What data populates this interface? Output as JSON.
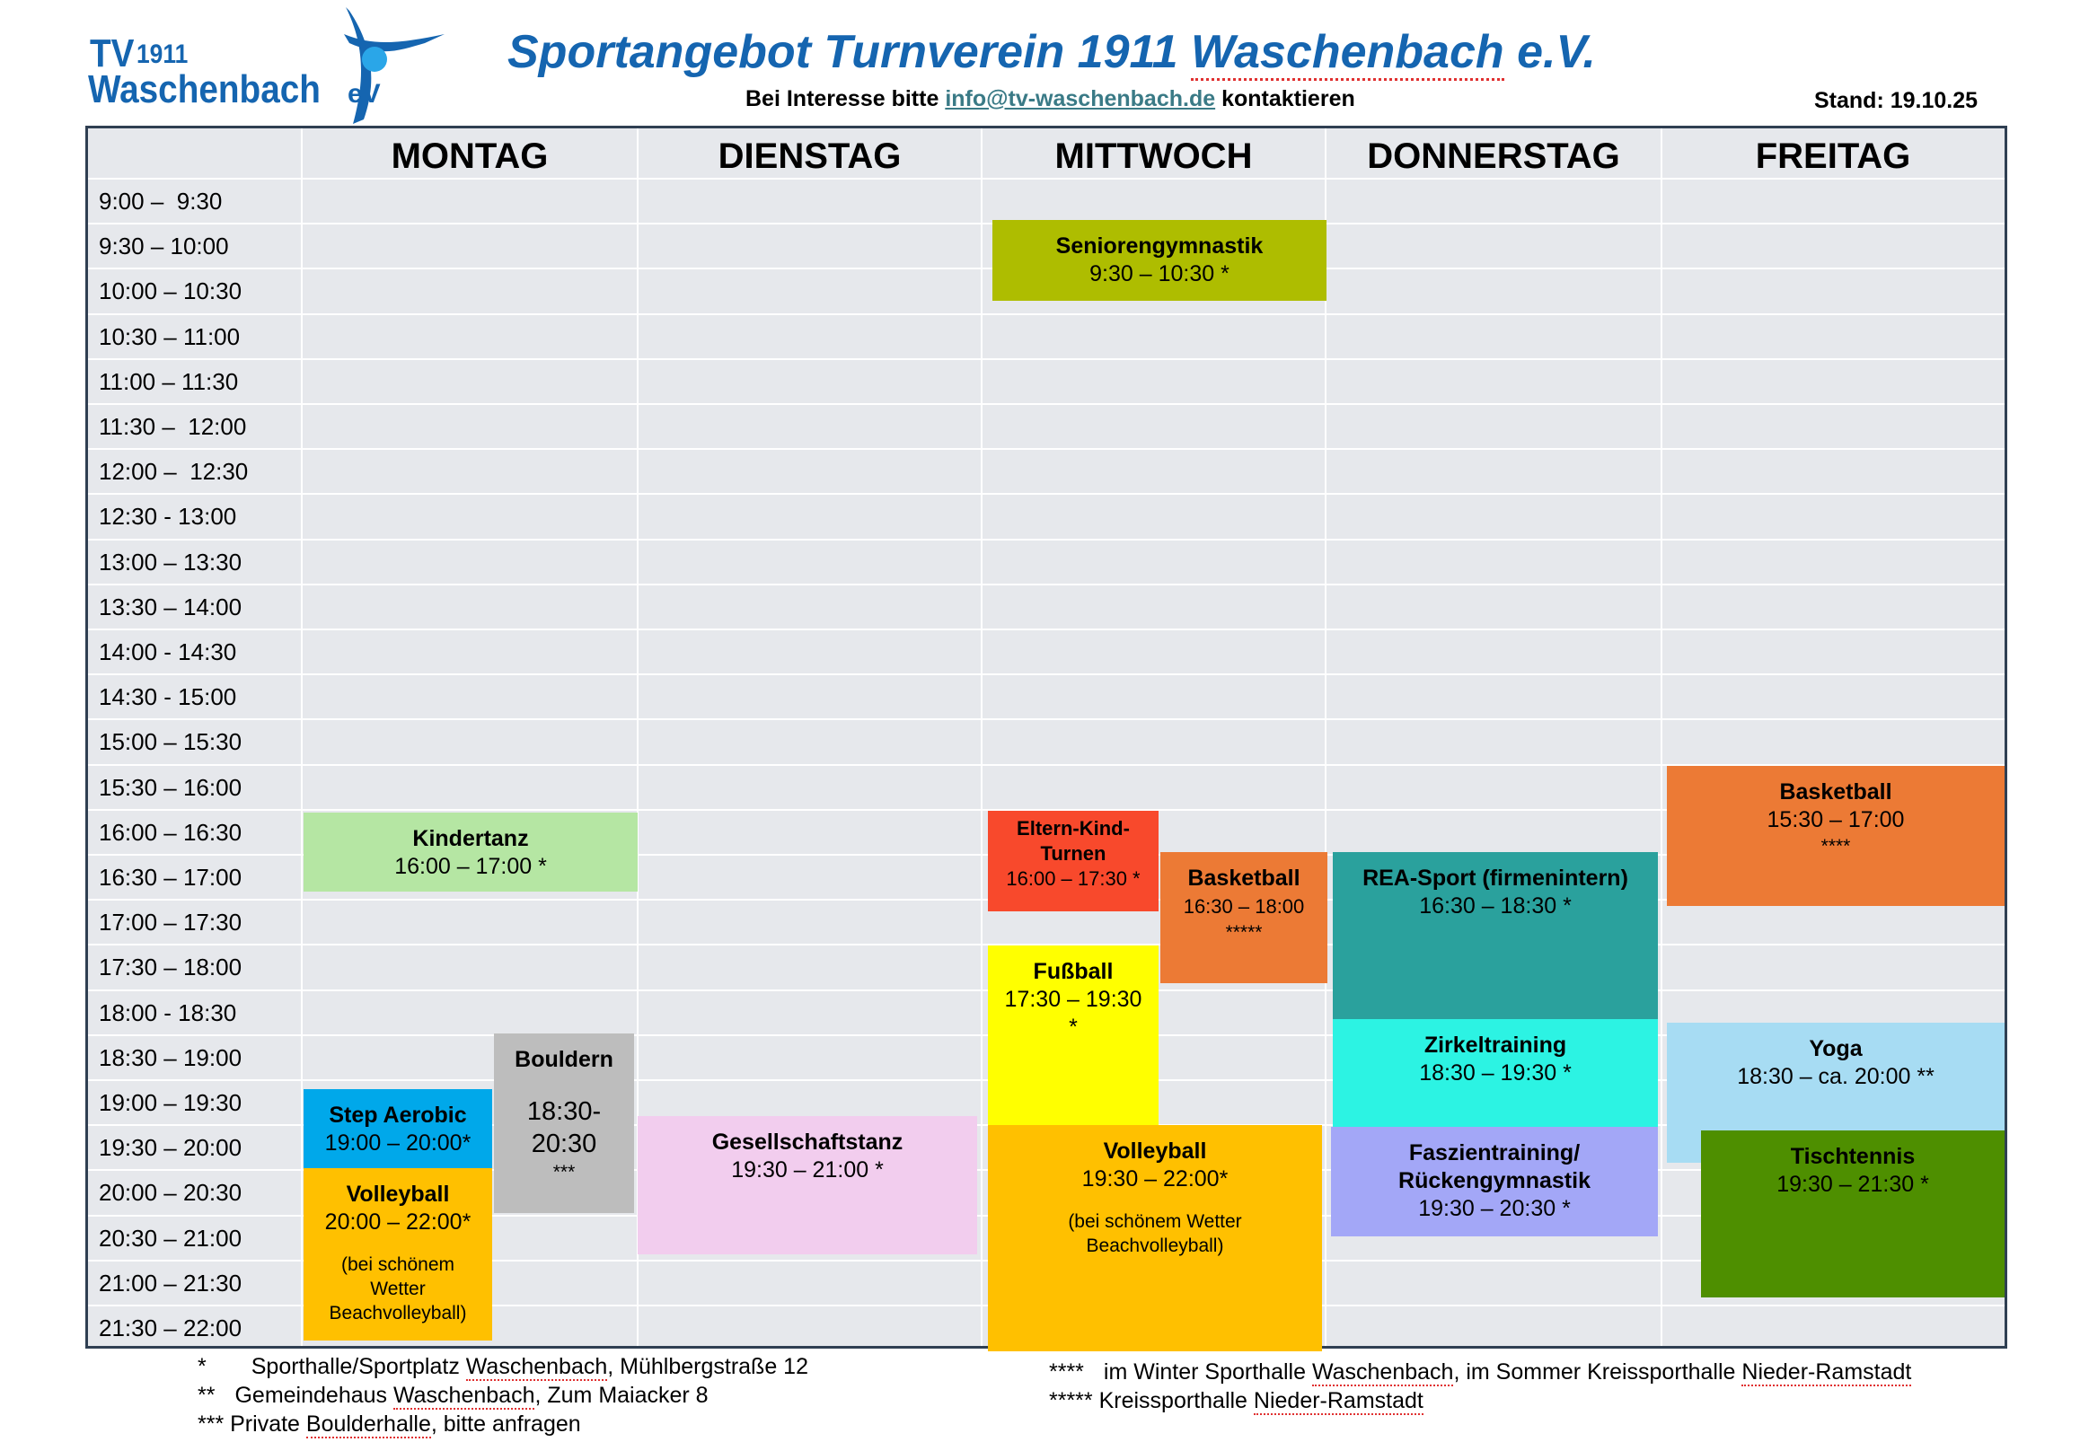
{
  "logo": {
    "tv": "TV",
    "year": "1911",
    "name": "Waschenbach",
    "ev": "eV"
  },
  "title_part1": "Sportangebot Turnverein 1911 ",
  "title_part2": "Waschenbach",
  "title_part3": " e.V.",
  "contact_before": "Bei Interesse bitte ",
  "contact_email": "info@tv-waschenbach.de",
  "contact_after": " kontaktieren",
  "stand": "Stand: 19.10.25",
  "days": [
    "MONTAG",
    "DIENSTAG",
    "MITTWOCH",
    "DONNERSTAG",
    "FREITAG"
  ],
  "times": [
    "9:00 –  9:30",
    "9:30 – 10:00",
    "10:00 – 10:30",
    "10:30 – 11:00",
    "11:00 – 11:30",
    "11:30 –  12:00",
    "12:00 –  12:30",
    "12:30 - 13:00",
    "13:00 – 13:30",
    "13:30 – 14:00",
    "14:00 - 14:30",
    "14:30 - 15:00",
    "15:00 – 15:30",
    "15:30 – 16:00",
    "16:00 – 16:30",
    "16:30 – 17:00",
    "17:00 – 17:30",
    "17:30 – 18:00",
    "18:00 - 18:30",
    "18:30 – 19:00",
    "19:00 – 19:30",
    "19:30 – 20:00",
    "20:00 – 20:30",
    "20:30 – 21:00",
    "21:00 – 21:30",
    "21:30 – 22:00"
  ],
  "events": [
    {
      "name": "Seniorengymnastik",
      "time": "9:30 – 10:30 *",
      "color": "#aebd00"
    },
    {
      "name": "Kindertanz",
      "time": "16:00 – 17:00 *",
      "color": "#b5e6a3"
    },
    {
      "name": "Step Aerobic",
      "time": "19:00 – 20:00*",
      "color": "#00a8ea"
    },
    {
      "name": "Bouldern",
      "time": "18:30-\n20:30",
      "note": "***",
      "color": "#bdbdbd"
    },
    {
      "name": "Volleyball",
      "time": "20:00 – 22:00*",
      "note": "(bei schönem\nWetter\nBeachvolleyball)",
      "color": "#ffc000"
    },
    {
      "name": "Gesellschaftstanz",
      "time": "19:30 – 21:00 *",
      "color": "#f2cdee"
    },
    {
      "name": "Eltern-Kind-\nTurnen",
      "time": "16:00 – 17:30 *",
      "color": "#f8492c"
    },
    {
      "name": "Basketball",
      "time": "16:30 – 18:00",
      "note": "*****",
      "color": "#ec7a35"
    },
    {
      "name": "Fußball",
      "time": "17:30 – 19:30\n*",
      "color": "#ffff00"
    },
    {
      "name": "Volleyball",
      "time": "19:30 – 22:00*",
      "note": "(bei schönem Wetter\nBeachvolleyball)",
      "color": "#ffc000"
    },
    {
      "name": "REA-Sport (firmenintern)",
      "time": "16:30 – 18:30 *",
      "color": "#2aa19d"
    },
    {
      "name": "Zirkeltraining",
      "time": "18:30 – 19:30 *",
      "color": "#2cf3e3"
    },
    {
      "name": "Faszientraining/\nRückengymnastik",
      "time": "19:30 – 20:30 *",
      "color": "#a3a7f7"
    },
    {
      "name": "Basketball",
      "time": "15:30 – 17:00",
      "note": "****",
      "color": "#ec7a35"
    },
    {
      "name": "Yoga",
      "time": "18:30 – ca. 20:00 **",
      "color": "#a7dcf3"
    },
    {
      "name": "Tischtennis",
      "time": "19:30 – 21:30 *",
      "color": "#4e8f00"
    }
  ],
  "footnotes": {
    "n1_mark": "*",
    "n1_text_a": "Sporthalle/Sportplatz ",
    "n1_text_b": "Waschenbach",
    "n1_text_c": ", Mühlbergstraße 12",
    "n2_mark": "**",
    "n2_text_a": "Gemeindehaus ",
    "n2_text_b": "Waschenbach",
    "n2_text_c": ", Zum Maiacker 8",
    "n3_mark": "***",
    "n3_text_a": " Private ",
    "n3_text_b": "Boulderhalle",
    "n3_text_c": ", bitte anfragen",
    "n4_mark": "****",
    "n4_text_a": "im Winter Sporthalle ",
    "n4_text_b": "Waschenbach",
    "n4_text_c": ", im Sommer Kreissporthalle ",
    "n4_text_d": "Nieder-Ramstadt",
    "n5_mark": "*****",
    "n5_text_a": " Kreissporthalle ",
    "n5_text_b": "Nieder-Ramstadt"
  }
}
